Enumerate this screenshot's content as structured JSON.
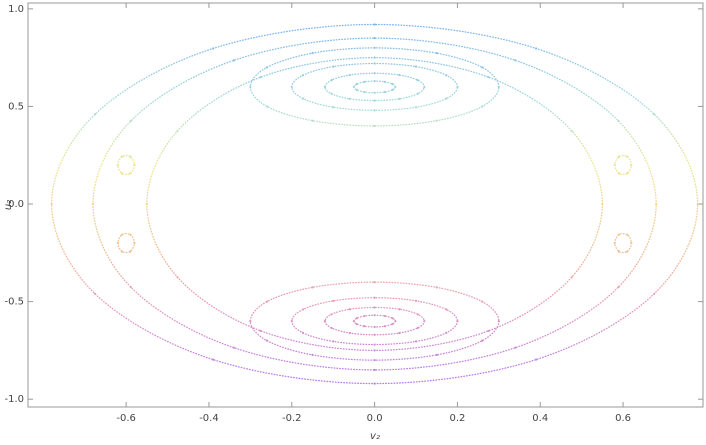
{
  "chart_data": {
    "type": "scatter",
    "x_label": "v₂",
    "y_label": "u₂",
    "xlim": [
      -0.837,
      0.793
    ],
    "ylim": [
      -1.04,
      1.03
    ],
    "xticks": [
      -0.6,
      -0.4,
      -0.2,
      {
        "value": 0,
        "label": "0.0"
      },
      0.2,
      0.4,
      0.6
    ],
    "yticks": [
      {
        "value": 1,
        "label": "1.0"
      },
      0.5,
      {
        "value": 0,
        "label": "0.0"
      },
      -0.5,
      {
        "value": -1,
        "label": "-1.0"
      }
    ],
    "colormap": [
      {
        "value": 0.9,
        "color": "#7ab4f2"
      },
      {
        "value": 0.5,
        "color": "#a6dcd8"
      },
      {
        "value": 0.2,
        "color": "#eee58a"
      },
      {
        "value": -0.2,
        "color": "#f1c08a"
      },
      {
        "value": -0.5,
        "color": "#e99ab8"
      },
      {
        "value": -0.9,
        "color": "#b87af0"
      }
    ],
    "series": [
      {
        "x": [
          0.05,
          0.043,
          0.025,
          0,
          -0.025,
          -0.043,
          -0.05,
          -0.043,
          -0.025,
          0,
          0.025,
          0.043
        ],
        "y": [
          0.6,
          0.615,
          0.626,
          0.63,
          0.626,
          0.615,
          0.6,
          0.585,
          0.574,
          0.57,
          0.574,
          0.585
        ]
      },
      {
        "x": [
          0.12,
          0.104,
          0.06,
          0,
          -0.06,
          -0.104,
          -0.12,
          -0.104,
          -0.06,
          0,
          0.06,
          0.104
        ],
        "y": [
          0.6,
          0.635,
          0.661,
          0.67,
          0.661,
          0.635,
          0.6,
          0.565,
          0.539,
          0.53,
          0.539,
          0.565
        ]
      },
      {
        "x": [
          0.2,
          0.173,
          0.1,
          0,
          -0.1,
          -0.173,
          -0.2,
          -0.173,
          -0.1,
          0,
          0.1,
          0.173
        ],
        "y": [
          0.6,
          0.66,
          0.704,
          0.72,
          0.704,
          0.66,
          0.6,
          0.54,
          0.496,
          0.48,
          0.496,
          0.54
        ]
      },
      {
        "x": [
          0.3,
          0.26,
          0.15,
          0,
          -0.15,
          -0.26,
          -0.3,
          -0.26,
          -0.15,
          0,
          0.15,
          0.26
        ],
        "y": [
          0.6,
          0.7,
          0.773,
          0.8,
          0.773,
          0.7,
          0.6,
          0.5,
          0.427,
          0.4,
          0.427,
          0.5
        ]
      },
      {
        "x": [
          0.05,
          0.043,
          0.025,
          0,
          -0.025,
          -0.043,
          -0.05,
          -0.043,
          -0.025,
          0,
          0.025,
          0.043
        ],
        "y": [
          -0.6,
          -0.615,
          -0.626,
          -0.63,
          -0.626,
          -0.615,
          -0.6,
          -0.585,
          -0.574,
          -0.57,
          -0.574,
          -0.585
        ]
      },
      {
        "x": [
          0.12,
          0.104,
          0.06,
          0,
          -0.06,
          -0.104,
          -0.12,
          -0.104,
          -0.06,
          0,
          0.06,
          0.104
        ],
        "y": [
          -0.6,
          -0.635,
          -0.661,
          -0.67,
          -0.661,
          -0.635,
          -0.6,
          -0.565,
          -0.539,
          -0.53,
          -0.539,
          -0.565
        ]
      },
      {
        "x": [
          0.2,
          0.173,
          0.1,
          0,
          -0.1,
          -0.173,
          -0.2,
          -0.173,
          -0.1,
          0,
          0.1,
          0.173
        ],
        "y": [
          -0.6,
          -0.66,
          -0.704,
          -0.72,
          -0.704,
          -0.66,
          -0.6,
          -0.54,
          -0.496,
          -0.48,
          -0.496,
          -0.54
        ]
      },
      {
        "x": [
          0.3,
          0.26,
          0.15,
          0,
          -0.15,
          -0.26,
          -0.3,
          -0.26,
          -0.15,
          0,
          0.15,
          0.26
        ],
        "y": [
          -0.6,
          -0.7,
          -0.773,
          -0.8,
          -0.773,
          -0.7,
          -0.6,
          -0.5,
          -0.427,
          -0.4,
          -0.427,
          -0.5
        ]
      },
      {
        "x": [
          0.55,
          0.476,
          0.275,
          0,
          -0.275,
          -0.476,
          -0.55,
          -0.476,
          -0.275,
          0,
          0.275,
          0.476
        ],
        "y": [
          0,
          0.375,
          0.65,
          0.75,
          0.65,
          0.375,
          0,
          -0.375,
          -0.65,
          -0.75,
          -0.65,
          -0.375
        ]
      },
      {
        "x": [
          0.68,
          0.589,
          0.34,
          0,
          -0.34,
          -0.589,
          -0.68,
          -0.589,
          -0.34,
          0,
          0.34,
          0.589
        ],
        "y": [
          0,
          0.425,
          0.736,
          0.85,
          0.736,
          0.425,
          0,
          -0.425,
          -0.736,
          -0.85,
          -0.736,
          -0.425
        ]
      },
      {
        "x": [
          0.78,
          0.675,
          0.39,
          0,
          -0.39,
          -0.675,
          -0.78,
          -0.675,
          -0.39,
          0,
          0.39,
          0.675
        ],
        "y": [
          0,
          0.46,
          0.797,
          0.92,
          0.797,
          0.46,
          0,
          -0.46,
          -0.797,
          -0.92,
          -0.797,
          -0.46
        ]
      },
      {
        "x": [
          0.62,
          0.61,
          0.59,
          0.58,
          0.59,
          0.61
        ],
        "y": [
          0.2,
          0.243,
          0.243,
          0.2,
          0.157,
          0.157
        ]
      },
      {
        "x": [
          -0.62,
          -0.61,
          -0.59,
          -0.58,
          -0.59,
          -0.61
        ],
        "y": [
          0.2,
          0.243,
          0.243,
          0.2,
          0.157,
          0.157
        ]
      },
      {
        "x": [
          0.62,
          0.61,
          0.59,
          0.58,
          0.59,
          0.61
        ],
        "y": [
          -0.2,
          -0.243,
          -0.243,
          -0.2,
          -0.157,
          -0.157
        ]
      },
      {
        "x": [
          -0.62,
          -0.61,
          -0.59,
          -0.58,
          -0.59,
          -0.61
        ],
        "y": [
          -0.2,
          -0.243,
          -0.243,
          -0.2,
          -0.157,
          -0.157
        ]
      }
    ]
  }
}
